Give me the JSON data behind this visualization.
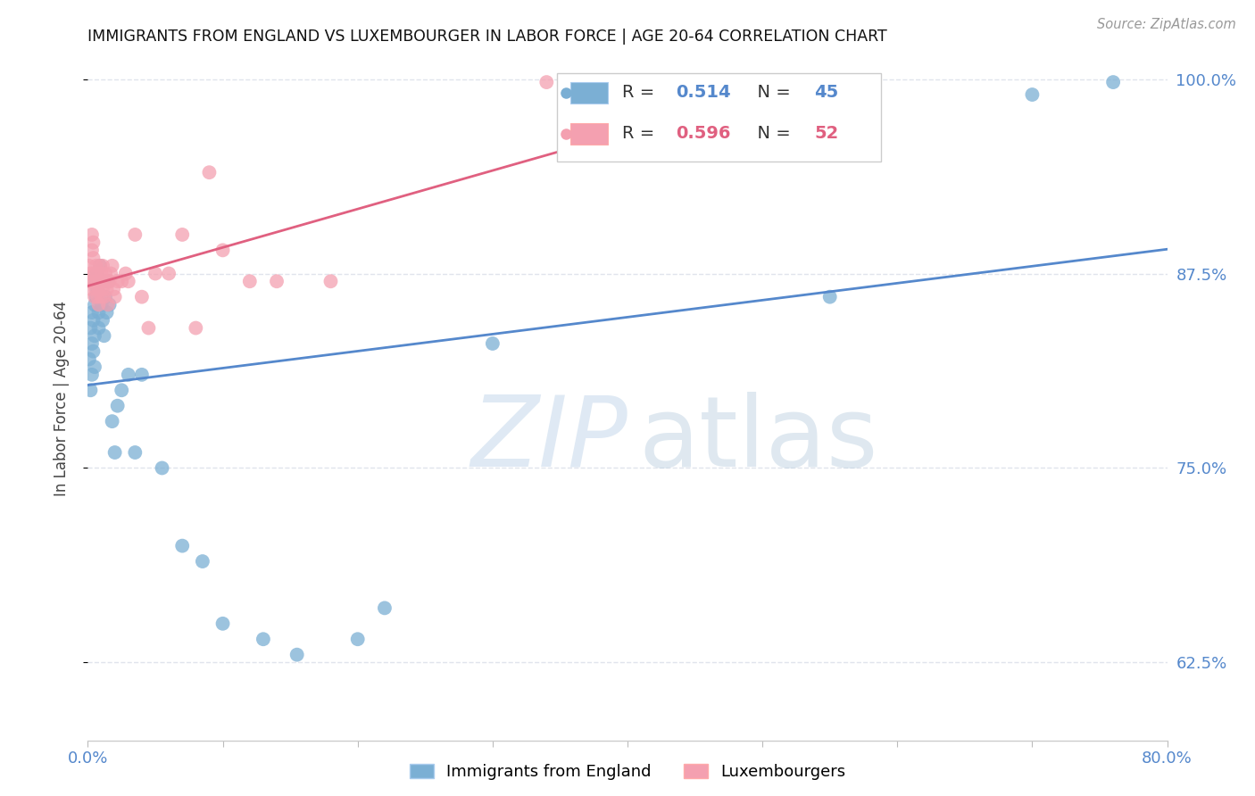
{
  "title": "IMMIGRANTS FROM ENGLAND VS LUXEMBOURGER IN LABOR FORCE | AGE 20-64 CORRELATION CHART",
  "source": "Source: ZipAtlas.com",
  "ylabel": "In Labor Force | Age 20-64",
  "xlim": [
    0.0,
    0.8
  ],
  "ylim": [
    0.575,
    1.015
  ],
  "xtick_positions": [
    0.0,
    0.1,
    0.2,
    0.3,
    0.4,
    0.5,
    0.6,
    0.7,
    0.8
  ],
  "xticklabels": [
    "0.0%",
    "",
    "",
    "",
    "",
    "",
    "",
    "",
    "80.0%"
  ],
  "ytick_positions": [
    0.625,
    0.75,
    0.875,
    1.0
  ],
  "ytick_labels": [
    "62.5%",
    "75.0%",
    "87.5%",
    "100.0%"
  ],
  "blue_R": 0.514,
  "blue_N": 45,
  "pink_R": 0.596,
  "pink_N": 52,
  "blue_color": "#7BAFD4",
  "pink_color": "#F4A0B0",
  "blue_line_color": "#5588CC",
  "pink_line_color": "#E06080",
  "grid_color": "#E0E4EC",
  "tick_label_color": "#5588CC",
  "blue_x": [
    0.001,
    0.002,
    0.002,
    0.003,
    0.003,
    0.003,
    0.004,
    0.004,
    0.005,
    0.005,
    0.005,
    0.006,
    0.006,
    0.007,
    0.007,
    0.008,
    0.008,
    0.009,
    0.01,
    0.01,
    0.011,
    0.012,
    0.013,
    0.014,
    0.015,
    0.016,
    0.018,
    0.02,
    0.022,
    0.025,
    0.03,
    0.035,
    0.04,
    0.055,
    0.07,
    0.085,
    0.1,
    0.13,
    0.155,
    0.2,
    0.22,
    0.3,
    0.55,
    0.7,
    0.76
  ],
  "blue_y": [
    0.82,
    0.84,
    0.8,
    0.85,
    0.83,
    0.81,
    0.845,
    0.825,
    0.855,
    0.835,
    0.815,
    0.87,
    0.86,
    0.875,
    0.865,
    0.85,
    0.84,
    0.88,
    0.87,
    0.855,
    0.845,
    0.835,
    0.86,
    0.85,
    0.87,
    0.855,
    0.78,
    0.76,
    0.79,
    0.8,
    0.81,
    0.76,
    0.81,
    0.75,
    0.7,
    0.69,
    0.65,
    0.64,
    0.63,
    0.64,
    0.66,
    0.83,
    0.86,
    0.99,
    0.998
  ],
  "pink_x": [
    0.001,
    0.001,
    0.002,
    0.002,
    0.003,
    0.003,
    0.004,
    0.004,
    0.005,
    0.005,
    0.005,
    0.006,
    0.006,
    0.007,
    0.007,
    0.007,
    0.008,
    0.008,
    0.009,
    0.009,
    0.01,
    0.01,
    0.011,
    0.011,
    0.012,
    0.012,
    0.013,
    0.014,
    0.015,
    0.015,
    0.016,
    0.017,
    0.018,
    0.019,
    0.02,
    0.022,
    0.025,
    0.028,
    0.03,
    0.035,
    0.04,
    0.045,
    0.05,
    0.06,
    0.07,
    0.08,
    0.09,
    0.1,
    0.12,
    0.14,
    0.18,
    0.34
  ],
  "pink_y": [
    0.87,
    0.88,
    0.875,
    0.865,
    0.89,
    0.9,
    0.885,
    0.895,
    0.87,
    0.86,
    0.875,
    0.865,
    0.88,
    0.87,
    0.875,
    0.86,
    0.865,
    0.855,
    0.87,
    0.88,
    0.86,
    0.875,
    0.865,
    0.88,
    0.87,
    0.86,
    0.875,
    0.865,
    0.87,
    0.855,
    0.87,
    0.875,
    0.88,
    0.865,
    0.86,
    0.87,
    0.87,
    0.875,
    0.87,
    0.9,
    0.86,
    0.84,
    0.875,
    0.875,
    0.9,
    0.84,
    0.94,
    0.89,
    0.87,
    0.87,
    0.87,
    0.998
  ]
}
